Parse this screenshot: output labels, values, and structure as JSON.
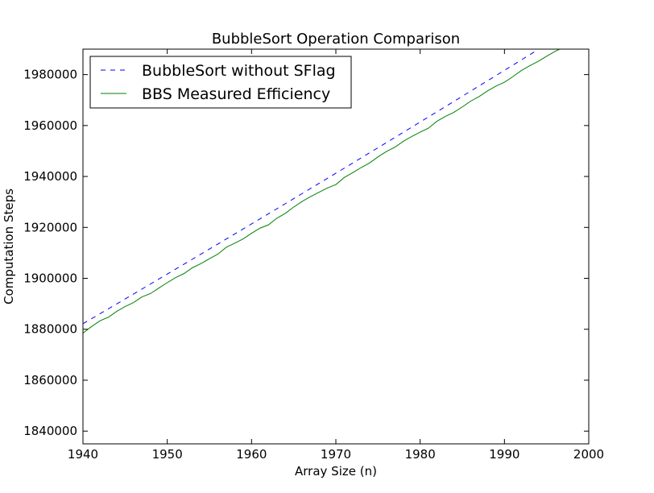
{
  "chart_data": {
    "type": "line",
    "title": "BubbleSort Operation Comparison",
    "xlabel": "Array Size (n)",
    "ylabel": "Computation Steps",
    "xlim": [
      1940,
      2000
    ],
    "ylim": [
      1835000,
      1990000
    ],
    "xticks": [
      1940,
      1950,
      1960,
      1970,
      1980,
      1990,
      2000
    ],
    "xtick_labels": [
      "1940",
      "1950",
      "1960",
      "1970",
      "1980",
      "1990",
      "2000"
    ],
    "yticks": [
      1840000,
      1860000,
      1880000,
      1900000,
      1920000,
      1940000,
      1960000,
      1980000
    ],
    "ytick_labels": [
      "1840000",
      "1860000",
      "1880000",
      "1900000",
      "1920000",
      "1940000",
      "1960000",
      "1980000"
    ],
    "legend_position": "top-left",
    "grid": false,
    "series": [
      {
        "name": "BubbleSort without SFlag",
        "color": "#0000ff",
        "style": "dashed",
        "x": [
          1940,
          1944,
          1948,
          1952,
          1956,
          1960,
          1964,
          1968,
          1972,
          1976,
          1980,
          1984,
          1988,
          1992,
          1996,
          2000
        ],
        "y": [
          1882170,
          1889946,
          1897754,
          1905594,
          1913466,
          1921370,
          1929306,
          1937274,
          1945274,
          1953306,
          1961370,
          1969466,
          1977594,
          1985754,
          1993946,
          2002170
        ]
      },
      {
        "name": "BBS Measured Efficiency",
        "color": "#008000",
        "style": "solid",
        "x": [
          1940,
          1941,
          1942,
          1943,
          1944,
          1945,
          1946,
          1947,
          1948,
          1949,
          1950,
          1951,
          1952,
          1953,
          1954,
          1955,
          1956,
          1957,
          1958,
          1959,
          1960,
          1961,
          1962,
          1963,
          1964,
          1965,
          1966,
          1967,
          1968,
          1969,
          1970,
          1971,
          1972,
          1973,
          1974,
          1975,
          1976,
          1977,
          1978,
          1979,
          1980,
          1981,
          1982,
          1983,
          1984,
          1985,
          1986,
          1987,
          1988,
          1989,
          1990,
          1991,
          1992,
          1993,
          1994,
          1995,
          1996,
          1997,
          1998
        ],
        "y": [
          1878500,
          1881000,
          1883300,
          1884700,
          1887000,
          1888900,
          1890500,
          1892700,
          1894000,
          1896200,
          1898300,
          1900300,
          1901900,
          1904200,
          1905800,
          1907700,
          1909500,
          1912200,
          1913800,
          1915500,
          1917700,
          1919700,
          1921000,
          1923600,
          1925500,
          1928000,
          1930200,
          1932100,
          1933800,
          1935500,
          1936800,
          1939600,
          1941500,
          1943500,
          1945300,
          1947700,
          1949800,
          1951500,
          1953800,
          1955700,
          1957400,
          1959000,
          1961700,
          1963600,
          1965200,
          1967300,
          1969600,
          1971400,
          1973600,
          1975500,
          1977000,
          1979200,
          1981600,
          1983500,
          1985200,
          1987200,
          1989100,
          1990700,
          1992500
        ]
      }
    ]
  }
}
